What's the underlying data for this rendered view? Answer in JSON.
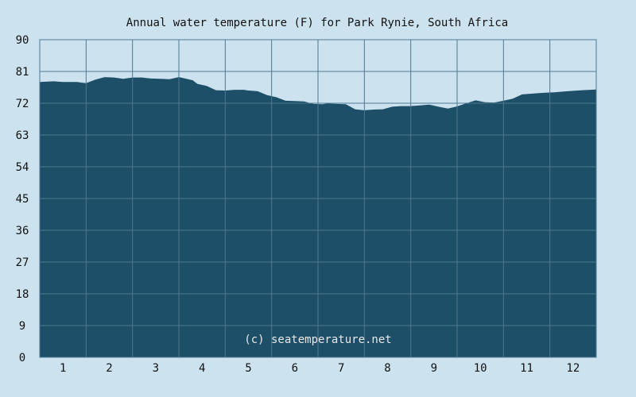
{
  "chart_data": {
    "type": "area",
    "title": "Annual water temperature (F) for Park Rynie, South Africa",
    "watermark": "(c) seatemperature.net",
    "xlabel": "",
    "ylabel": "",
    "xlim": [
      0.5,
      12.5
    ],
    "ylim": [
      0,
      90
    ],
    "y_ticks": [
      "0",
      "9",
      "18",
      "27",
      "36",
      "45",
      "54",
      "63",
      "72",
      "81",
      "90"
    ],
    "x_ticks": [
      "1",
      "2",
      "3",
      "4",
      "5",
      "6",
      "7",
      "8",
      "9",
      "10",
      "11",
      "12"
    ],
    "grid": true,
    "x": [
      0.5,
      0.8,
      1.0,
      1.3,
      1.5,
      1.7,
      1.9,
      2.1,
      2.3,
      2.5,
      2.7,
      2.9,
      3.1,
      3.3,
      3.5,
      3.6,
      3.8,
      3.9,
      4.1,
      4.3,
      4.5,
      4.7,
      4.9,
      5.0,
      5.2,
      5.4,
      5.6,
      5.8,
      6.0,
      6.2,
      6.4,
      6.6,
      6.7,
      6.9,
      7.1,
      7.3,
      7.5,
      7.7,
      7.9,
      8.1,
      8.3,
      8.5,
      8.7,
      8.9,
      9.1,
      9.3,
      9.5,
      9.7,
      9.9,
      10.1,
      10.3,
      10.5,
      10.7,
      10.9,
      11.1,
      11.3,
      11.4,
      11.6,
      11.8,
      12.0,
      12.2,
      12.5
    ],
    "values": [
      78,
      78.2,
      78,
      78,
      77.7,
      78.7,
      79.4,
      79.3,
      78.9,
      79.3,
      79.3,
      79.0,
      78.9,
      78.8,
      79.4,
      79.1,
      78.5,
      77.5,
      76.9,
      75.7,
      75.6,
      75.8,
      75.8,
      75.6,
      75.4,
      74.3,
      73.7,
      72.7,
      72.6,
      72.5,
      71.8,
      71.7,
      71.9,
      71.8,
      71.7,
      70.3,
      70.0,
      70.2,
      70.3,
      71.0,
      71.2,
      71.2,
      71.4,
      71.6,
      71.0,
      70.5,
      71.1,
      72.0,
      72.8,
      72.3,
      72.2,
      72.7,
      73.3,
      74.5,
      74.7,
      74.9,
      75.0,
      75.1,
      75.3,
      75.5,
      75.7,
      75.9
    ],
    "colors": {
      "background": "#cce3ef",
      "plot_fill": "#1d4f69",
      "grid": "#4d7890",
      "frame": "#4d7890"
    }
  }
}
